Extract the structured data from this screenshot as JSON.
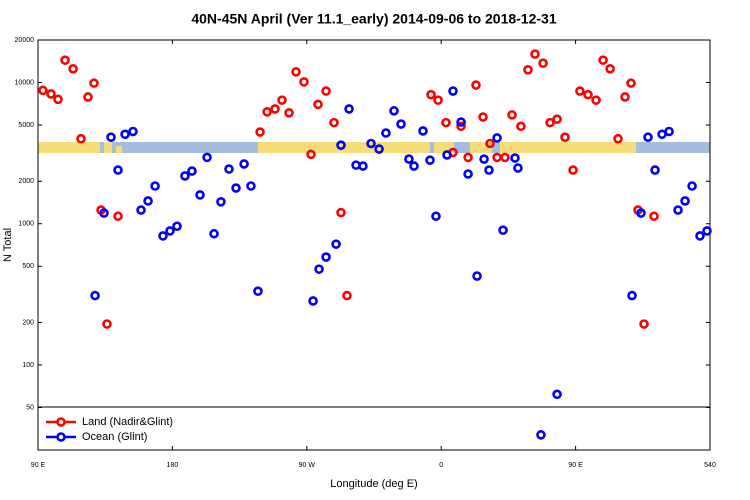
{
  "chart_data": {
    "type": "scatter",
    "title": "40N-45N April (Ver 11.1_early)   2014-09-06 to 2018-12-31",
    "x_label": "Longitude (deg E)",
    "y_label": "N Total",
    "xlim": [
      90,
      540
    ],
    "ylim": [
      25,
      20000
    ],
    "log_y": true,
    "legend": "lower left",
    "xticks": [
      {
        "value": 90,
        "label": "90 E"
      },
      180,
      {
        "value": 270,
        "label": "90 W"
      },
      {
        "value": 360,
        "label": "0"
      },
      {
        "value": 450,
        "label": "90 E"
      },
      540
    ],
    "yticks": [
      50,
      100,
      200,
      500,
      1000,
      2000,
      5000,
      10000,
      20000
    ],
    "series": [
      {
        "name": "Land (Nadir&Glint)",
        "color": "#ff0000",
        "x": [
          93.3,
          98.7,
          103.4,
          108.1,
          113.5,
          118.8,
          123.5,
          127.5,
          132.2,
          136.2,
          143.6,
          238.7,
          243.4,
          248.7,
          253.4,
          258.1,
          262.8,
          268.1,
          272.8,
          277.5,
          282.9,
          288.2,
          292.9,
          296.9,
          353.2,
          357.9,
          363.2,
          367.9,
          373.3,
          378,
          383.3,
          388,
          392.7,
          397.4,
          402.7,
          407.4,
          413.4,
          418.1,
          422.8,
          428.2,
          432.9,
          437.6,
          442.9,
          448.3,
          452.9,
          458.3,
          463.7,
          468.4,
          473.1,
          478.4,
          483.1,
          487.1,
          491.8,
          495.8,
          502.5
        ],
        "values": [
          8800,
          8300,
          7600,
          14400,
          12500,
          4000,
          7900,
          9900,
          1250,
          195,
          1130,
          4460,
          6200,
          6500,
          7500,
          6100,
          11900,
          10100,
          3100,
          7000,
          8700,
          5200,
          1200,
          310,
          8200,
          7500,
          5200,
          3200,
          4900,
          2950,
          9600,
          5700,
          3700,
          2950,
          2950,
          5900,
          4900,
          12300,
          15900,
          13700,
          5200,
          5500,
          4100,
          2400,
          8700,
          8200,
          7500,
          14400,
          12500,
          4000,
          7900,
          9900,
          1250,
          195,
          1130
        ]
      },
      {
        "name": "Ocean (Glint)",
        "color": "#0000ff",
        "x": [
          128.2,
          134.2,
          138.9,
          143.6,
          148.3,
          153.6,
          159,
          163.7,
          168.4,
          173.7,
          178.4,
          183.1,
          188.4,
          193.1,
          198.5,
          203.2,
          207.9,
          212.5,
          217.9,
          222.6,
          228,
          232.6,
          237.3,
          274.2,
          278.2,
          282.9,
          289.6,
          292.9,
          298.3,
          303,
          307.6,
          313,
          318.4,
          323,
          328.4,
          333.1,
          338.4,
          341.8,
          347.8,
          352.5,
          356.5,
          363.9,
          367.9,
          373.3,
          378,
          384,
          388.7,
          392,
          397.4,
          401.4,
          409.4,
          411.4,
          426.8,
          437.6,
          487.8,
          493.8,
          498.5,
          503.2,
          507.9,
          512.6,
          518.6,
          523.3,
          528,
          533.3,
          538
        ],
        "values": [
          310,
          1190,
          4100,
          2400,
          4300,
          4500,
          1250,
          1450,
          1850,
          820,
          890,
          960,
          2180,
          2360,
          1600,
          2950,
          850,
          1430,
          2440,
          1790,
          2650,
          1850,
          333,
          284,
          477,
          581,
          717,
          3600,
          6500,
          2600,
          2560,
          3700,
          3380,
          4390,
          6300,
          5080,
          2870,
          2560,
          4540,
          2820,
          1130,
          3070,
          8700,
          5250,
          2250,
          426,
          2870,
          2400,
          4050,
          900,
          2920,
          2480,
          32,
          62,
          310,
          1190,
          4100,
          2400,
          4300,
          4500,
          1250,
          1450,
          1850,
          820,
          890
        ]
      }
    ]
  }
}
